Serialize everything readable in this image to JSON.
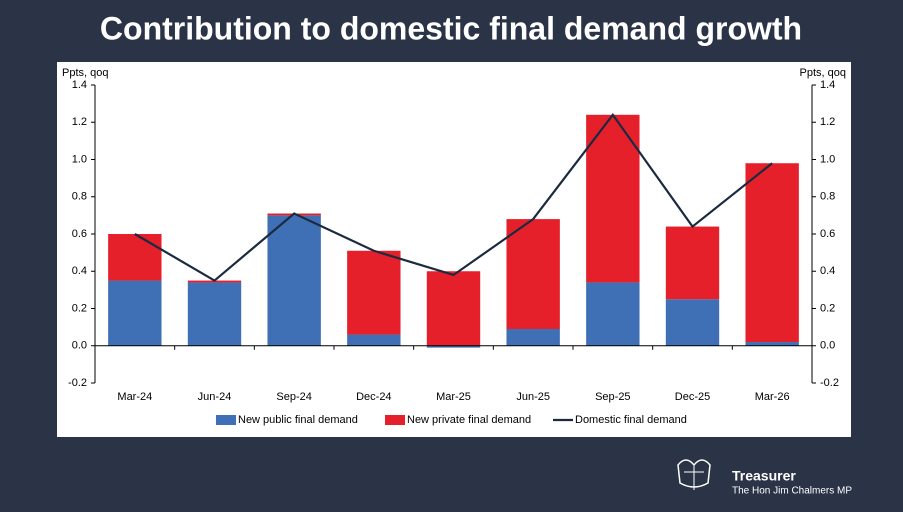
{
  "chart_data": {
    "type": "bar",
    "stacked": true,
    "title": "Contribution to domestic final demand growth",
    "y_label": "Ppts, qoq",
    "y2_label": "Ppts, qoq",
    "categories": [
      "Mar-24",
      "Jun-24",
      "Sep-24",
      "Dec-24",
      "Mar-25",
      "Jun-25",
      "Sep-25",
      "Dec-25",
      "Mar-26"
    ],
    "series": [
      {
        "name": "New public final demand",
        "type": "bar",
        "color": "#3f6fb5",
        "values": [
          0.35,
          0.34,
          0.7,
          0.06,
          -0.01,
          0.09,
          0.34,
          0.25,
          0.02
        ]
      },
      {
        "name": "New private final demand",
        "type": "bar",
        "color": "#e5202a",
        "values": [
          0.25,
          0.01,
          0.01,
          0.45,
          0.4,
          0.59,
          0.9,
          0.39,
          0.96
        ]
      },
      {
        "name": "Domestic final demand",
        "type": "line",
        "color": "#1c2a40",
        "values": [
          0.6,
          0.35,
          0.71,
          0.51,
          0.38,
          0.68,
          1.24,
          0.64,
          0.98
        ]
      }
    ],
    "ylim": [
      -0.2,
      1.4
    ],
    "yticks": [
      -0.2,
      {
        "value": 0,
        "label": "0.0"
      },
      0.2,
      0.4,
      0.6,
      0.8,
      {
        "value": 1,
        "label": "1.0"
      },
      1.2,
      1.4
    ],
    "y2lim": [
      -0.2,
      1.4
    ],
    "y2ticks": [
      -0.2,
      {
        "value": 0,
        "label": "0.0"
      },
      0.2,
      0.4,
      0.6,
      0.8,
      {
        "value": 1,
        "label": "1.0"
      },
      1.2,
      1.4
    ],
    "legend": "bottom",
    "grid": false
  },
  "footer": {
    "title": "Treasurer",
    "subtitle": "The Hon Jim Chalmers MP"
  }
}
